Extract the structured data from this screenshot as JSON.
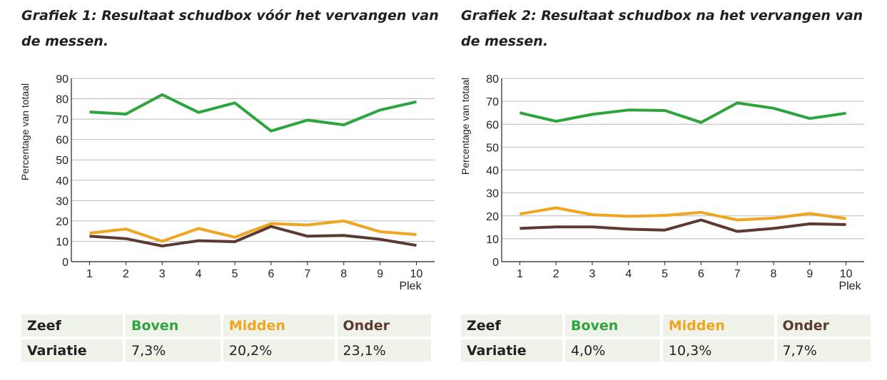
{
  "charts": [
    {
      "title": "Grafiek 1: Resultaat schudbox vóór het vervangen van de messen.",
      "ylabel": "Percentage van totaal",
      "xlabel": "Plek",
      "ticks": [
        "0",
        "10",
        "20",
        "30",
        "40",
        "50",
        "60",
        "70",
        "80",
        "90"
      ],
      "categories": [
        "1",
        "2",
        "3",
        "4",
        "5",
        "6",
        "7",
        "8",
        "9",
        "10"
      ],
      "table": {
        "header_label": "Zeef",
        "row_label": "Variatie",
        "columns": [
          "Boven",
          "Midden",
          "Onder"
        ],
        "values": [
          "7,3%",
          "20,2%",
          "23,1%"
        ]
      }
    },
    {
      "title": "Grafiek 2: Resultaat schudbox na het vervangen van de messen.",
      "ylabel": "Percentage van totaal",
      "xlabel": "Plek",
      "ticks": [
        "0",
        "10",
        "20",
        "30",
        "40",
        "50",
        "60",
        "70",
        "80"
      ],
      "categories": [
        "1",
        "2",
        "3",
        "4",
        "5",
        "6",
        "7",
        "8",
        "9",
        "10"
      ],
      "table": {
        "header_label": "Zeef",
        "row_label": "Variatie",
        "columns": [
          "Boven",
          "Midden",
          "Onder"
        ],
        "values": [
          "4,0%",
          "10,3%",
          "7,7%"
        ]
      }
    }
  ],
  "colors": {
    "boven": "#2ea43e",
    "midden": "#f0a521",
    "onder": "#5c3a31",
    "grid": "#b9b9b9"
  },
  "chart_data": [
    {
      "type": "line",
      "title": "Grafiek 1: Resultaat schudbox vóór het vervangen van de messen.",
      "xlabel": "Plek",
      "ylabel": "Percentage van totaal",
      "ylim": [
        0,
        90
      ],
      "x": [
        1,
        2,
        3,
        4,
        5,
        6,
        7,
        8,
        9,
        10
      ],
      "series": [
        {
          "name": "Boven",
          "values": [
            73.5,
            72.5,
            82,
            73.3,
            78,
            64.2,
            69.5,
            67.2,
            74.5,
            78.5
          ]
        },
        {
          "name": "Midden",
          "values": [
            14,
            16,
            10,
            16.3,
            12,
            18.7,
            18,
            20,
            14.7,
            13.3
          ]
        },
        {
          "name": "Onder",
          "values": [
            12.5,
            11.3,
            7.7,
            10.3,
            9.8,
            17.3,
            12.5,
            12.9,
            11,
            8
          ]
        }
      ]
    },
    {
      "type": "line",
      "title": "Grafiek 2: Resultaat schudbox na het vervangen van de messen.",
      "xlabel": "Plek",
      "ylabel": "Percentage van totaal",
      "ylim": [
        0,
        80
      ],
      "x": [
        1,
        2,
        3,
        4,
        5,
        6,
        7,
        8,
        9,
        10
      ],
      "series": [
        {
          "name": "Boven",
          "values": [
            65,
            61.3,
            64.3,
            66.2,
            66,
            60.8,
            69.3,
            67,
            62.5,
            64.8
          ]
        },
        {
          "name": "Midden",
          "values": [
            20.8,
            23.5,
            20.5,
            19.8,
            20.2,
            21.5,
            18.2,
            19,
            21,
            18.8
          ]
        },
        {
          "name": "Onder",
          "values": [
            14.5,
            15.2,
            15.2,
            14.2,
            13.8,
            18.2,
            13.2,
            14.5,
            16.5,
            16.2
          ]
        }
      ]
    }
  ]
}
